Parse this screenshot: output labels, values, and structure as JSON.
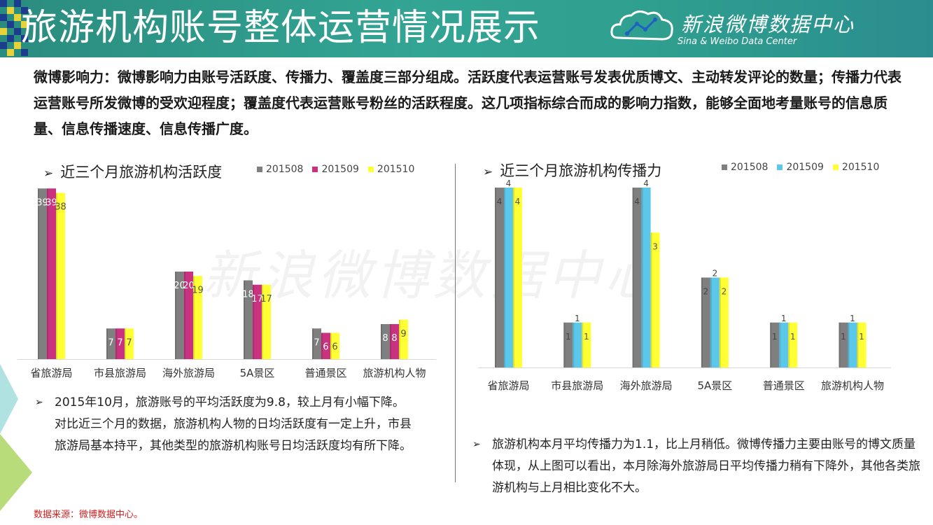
{
  "header": {
    "title": "旅游机构账号整体运营情况展示",
    "logo_main": "新浪微博数据中心",
    "logo_sub": "Sina & Weibo Data Center"
  },
  "intro": {
    "term": "微博影响力：",
    "text": "微博影响力由账号活跃度、传播力、覆盖度三部分组成。活跃度代表运营账号发表优质博文、主动转发评论的数量；传播力代表运营账号所发微博的受欢迎程度；覆盖度代表运营账号粉丝的活跃程度。这几项指标综合而成的影响力指数，能够全面地考量账号的信息质量、信息传播速度、信息传播广度。"
  },
  "watermark": "新浪微博数据中心",
  "chart_data": [
    {
      "type": "bar",
      "title": "近三个月旅游机构活跃度",
      "categories": [
        "省旅游局",
        "市县旅游局",
        "海外旅游局",
        "5A景区",
        "普通景区",
        "旅游机构人物"
      ],
      "series": [
        {
          "name": "201508",
          "color": "#7f7f7f",
          "values": [
            39,
            7,
            20,
            18,
            7,
            8
          ]
        },
        {
          "name": "201509",
          "color": "#c9327e",
          "values": [
            39,
            7,
            20,
            17,
            6,
            8
          ]
        },
        {
          "name": "201510",
          "color": "#ffff33",
          "values": [
            38,
            7,
            19,
            17,
            6,
            9
          ]
        }
      ],
      "labels": [
        [
          "39",
          "7",
          "20",
          "18",
          "7",
          "8"
        ],
        [
          "39",
          "7",
          "20",
          "17",
          "6",
          "8"
        ],
        [
          "38",
          "7",
          "19",
          "17",
          "6",
          "9"
        ]
      ],
      "ylim": [
        0,
        40
      ],
      "legend": "top-right",
      "grid": false
    },
    {
      "type": "bar",
      "title": "近三个月旅游机构传播力",
      "categories": [
        "省旅游局",
        "市县旅游局",
        "海外旅游局",
        "5A景区",
        "普通景区",
        "旅游机构人物"
      ],
      "series": [
        {
          "name": "201508",
          "color": "#7f7f7f",
          "values": [
            4.0,
            1.0,
            4.0,
            2.0,
            1.0,
            1.0
          ]
        },
        {
          "name": "201509",
          "color": "#5bc8ea",
          "values": [
            4.0,
            1.0,
            4.0,
            2.0,
            1.0,
            1.0
          ]
        },
        {
          "name": "201510",
          "color": "#ffff33",
          "values": [
            4.0,
            1.0,
            3.0,
            2.0,
            1.0,
            1.0
          ]
        }
      ],
      "labels": [
        [
          "4",
          "1",
          "4",
          "2",
          "1",
          "1"
        ],
        [
          "4",
          "1",
          "4",
          "2",
          "1",
          "1"
        ],
        [
          "4",
          "1",
          "3",
          "2",
          "1",
          "1"
        ]
      ],
      "ylim": [
        0,
        4.0
      ],
      "legend": "top-right",
      "grid": false
    }
  ],
  "left_summary": "2015年10月，旅游账号的平均活跃度为9.8，较上月有小幅下降。对比近三个月的数据，旅游机构人物的日均活跃度有一定上升，市县旅游局基本持平，其他类型的旅游机构账号日均活跃度均有所下降。",
  "right_summary": "旅游机构本月平均传播力为1.1，比上月稍低。微博传播力主要由账号的博文质量体现，从上图可以看出，本月除海外旅游局日平均传播力稍有下降外，其他各类旅游机构与上月相比变化不大。",
  "source": "数据来源：微博数据中心。"
}
